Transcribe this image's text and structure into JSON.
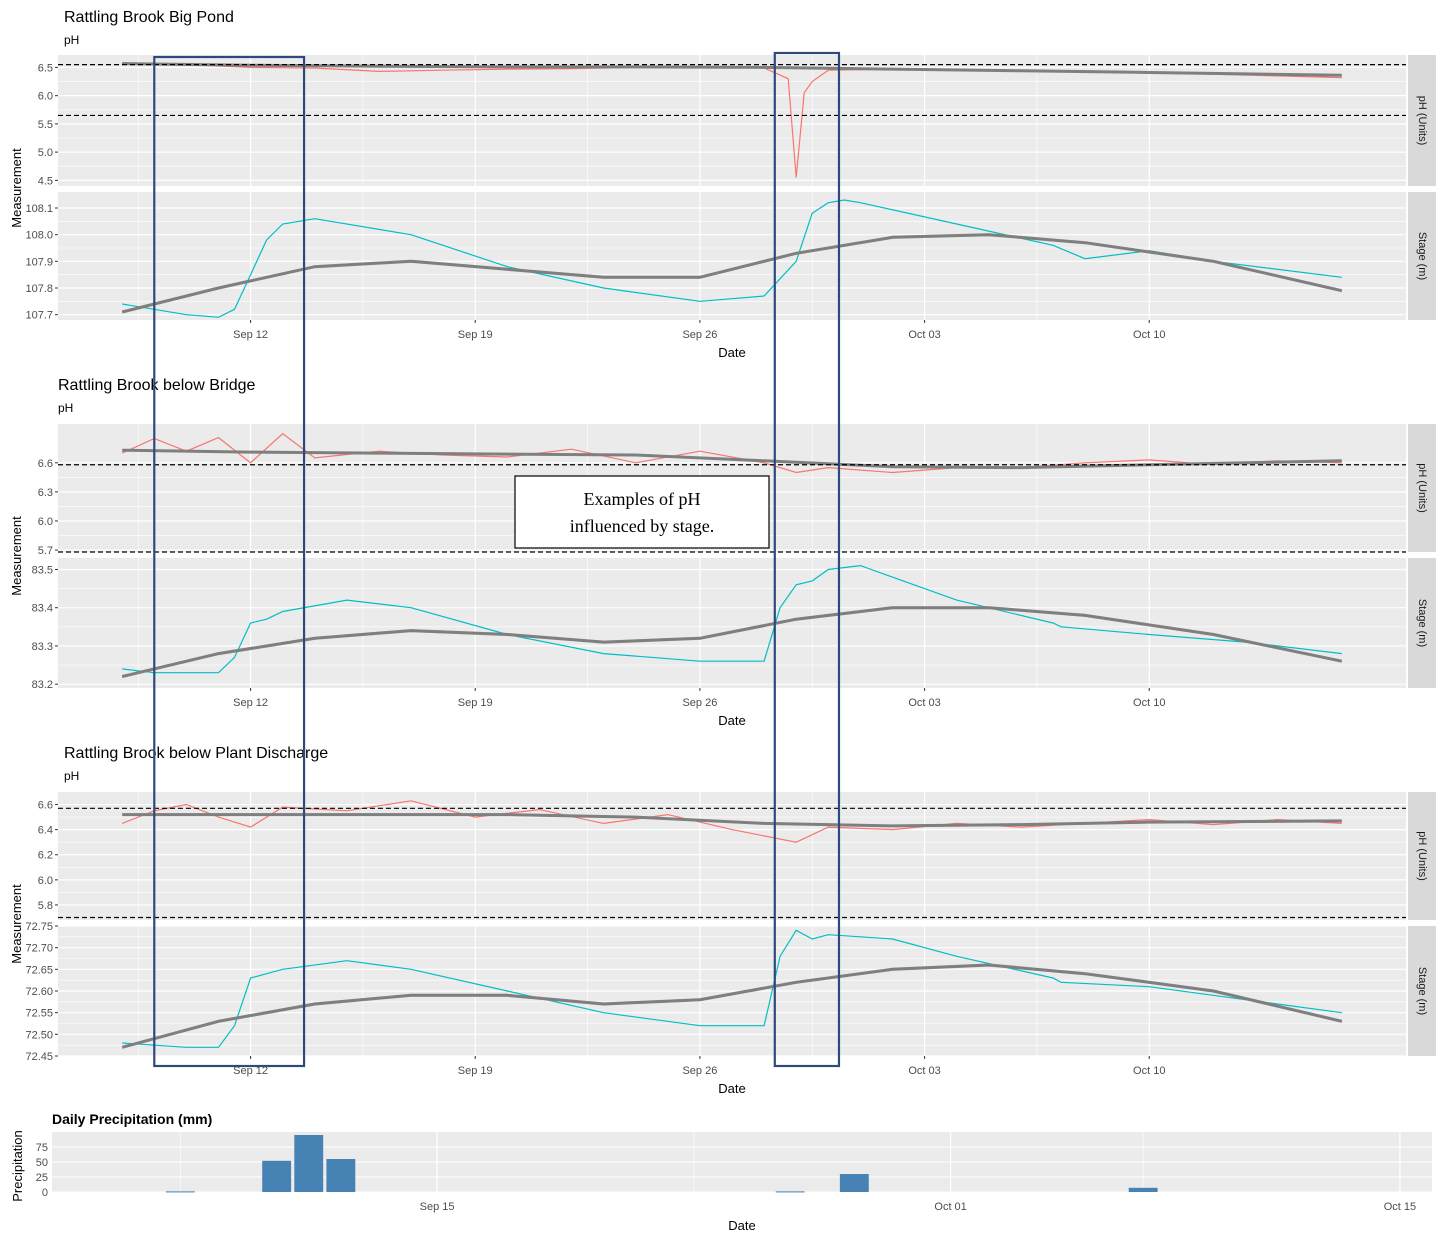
{
  "colors": {
    "panel_bg": "#ebebeb",
    "grid": "#ffffff",
    "strip_bg": "#d9d9d9",
    "ph_line": "#f8766d",
    "stage_line": "#00bfc4",
    "smooth": "#7f7f7f",
    "smooth_band": "#bdbdbd",
    "bar": "#4682b4",
    "highlight_box": "#2e4a7d"
  },
  "annotation": {
    "text_line1": "Examples of pH",
    "text_line2": "influenced by stage.",
    "highlight_ranges": [
      [
        "2023-09-09 00:00",
        "2023-09-13 16:00"
      ],
      [
        "2023-09-28 08:00",
        "2023-09-30 08:00"
      ]
    ]
  },
  "chart_data": [
    {
      "type": "line",
      "title": "Rattling Brook Big Pond",
      "subtitle": "pH",
      "xlabel": "Date",
      "ylabel": "Measurement",
      "x_range": [
        "2023-09-06 00:00",
        "2023-10-18 00:00"
      ],
      "x_ticks": [
        "Sep 12",
        "Sep 19",
        "Sep 26",
        "Oct 03",
        "Oct 10"
      ],
      "x_tick_dates": [
        "2023-09-12",
        "2023-09-19",
        "2023-09-26",
        "2023-10-03",
        "2023-10-10"
      ],
      "grid": true,
      "facets": [
        {
          "strip": "pH (Units)",
          "ylim": [
            4.4,
            6.72
          ],
          "y_ticks": [
            "4.5",
            "5.0",
            "5.5",
            "6.0",
            "6.5"
          ],
          "thresholds": [
            6.55,
            5.65
          ],
          "series": {
            "x": [
              "2023-09-08",
              "2023-09-10",
              "2023-09-12",
              "2023-09-14",
              "2023-09-16",
              "2023-09-18",
              "2023-09-20",
              "2023-09-22",
              "2023-09-24",
              "2023-09-26",
              "2023-09-28",
              "2023-09-28 18:00",
              "2023-09-29 00:00",
              "2023-09-29 06:00",
              "2023-09-29 12:00",
              "2023-09-30",
              "2023-10-02",
              "2023-10-04",
              "2023-10-06",
              "2023-10-08",
              "2023-10-10",
              "2023-10-12",
              "2023-10-14",
              "2023-10-16"
            ],
            "y": [
              6.57,
              6.55,
              6.5,
              6.49,
              6.43,
              6.45,
              6.47,
              6.48,
              6.5,
              6.52,
              6.49,
              6.3,
              4.55,
              6.05,
              6.25,
              6.45,
              6.47,
              6.46,
              6.44,
              6.42,
              6.4,
              6.38,
              6.35,
              6.32
            ]
          },
          "smooth": {
            "x": [
              "2023-09-08",
              "2023-09-12",
              "2023-09-16",
              "2023-09-20",
              "2023-09-24",
              "2023-09-28",
              "2023-10-02",
              "2023-10-06",
              "2023-10-10",
              "2023-10-16"
            ],
            "y": [
              6.57,
              6.54,
              6.52,
              6.51,
              6.51,
              6.5,
              6.47,
              6.44,
              6.41,
              6.36
            ]
          }
        },
        {
          "strip": "Stage (m)",
          "ylim": [
            107.68,
            108.16
          ],
          "y_ticks": [
            "107.7",
            "107.8",
            "107.9",
            "108.0",
            "108.1"
          ],
          "thresholds": [],
          "series": {
            "x": [
              "2023-09-08",
              "2023-09-10",
              "2023-09-11",
              "2023-09-11 12:00",
              "2023-09-12",
              "2023-09-12 12:00",
              "2023-09-13",
              "2023-09-14",
              "2023-09-17",
              "2023-09-20",
              "2023-09-23",
              "2023-09-26",
              "2023-09-27",
              "2023-09-28",
              "2023-09-29",
              "2023-09-29 12:00",
              "2023-09-30",
              "2023-09-30 12:00",
              "2023-10-01",
              "2023-10-04",
              "2023-10-07",
              "2023-10-08",
              "2023-10-10",
              "2023-10-12",
              "2023-10-16"
            ],
            "y": [
              107.74,
              107.7,
              107.69,
              107.72,
              107.85,
              107.98,
              108.04,
              108.06,
              108.0,
              107.88,
              107.8,
              107.75,
              107.76,
              107.77,
              107.9,
              108.08,
              108.12,
              108.13,
              108.12,
              108.04,
              107.96,
              107.91,
              107.94,
              107.9,
              107.84
            ]
          },
          "smooth": {
            "x": [
              "2023-09-08",
              "2023-09-11",
              "2023-09-14",
              "2023-09-17",
              "2023-09-20",
              "2023-09-23",
              "2023-09-26",
              "2023-09-29",
              "2023-10-02",
              "2023-10-05",
              "2023-10-08",
              "2023-10-12",
              "2023-10-16"
            ],
            "y": [
              107.71,
              107.8,
              107.88,
              107.9,
              107.87,
              107.84,
              107.84,
              107.93,
              107.99,
              108.0,
              107.97,
              107.9,
              107.79
            ]
          }
        }
      ]
    },
    {
      "type": "line",
      "title": "Rattling Brook below Bridge",
      "subtitle": "pH",
      "xlabel": "Date",
      "ylabel": "Measurement",
      "x_range": [
        "2023-09-06 00:00",
        "2023-10-18 00:00"
      ],
      "x_ticks": [
        "Sep 12",
        "Sep 19",
        "Sep 26",
        "Oct 03",
        "Oct 10"
      ],
      "x_tick_dates": [
        "2023-09-12",
        "2023-09-19",
        "2023-09-26",
        "2023-10-03",
        "2023-10-10"
      ],
      "grid": true,
      "facets": [
        {
          "strip": "pH (Units)",
          "ylim": [
            5.68,
            7.0
          ],
          "y_ticks": [
            "5.7",
            "6.0",
            "6.3",
            "6.6"
          ],
          "thresholds": [
            6.58,
            5.68
          ],
          "series": {
            "x": [
              "2023-09-08",
              "2023-09-09",
              "2023-09-10",
              "2023-09-11",
              "2023-09-12",
              "2023-09-13",
              "2023-09-14",
              "2023-09-16",
              "2023-09-18",
              "2023-09-20",
              "2023-09-22",
              "2023-09-24",
              "2023-09-26",
              "2023-09-28",
              "2023-09-29",
              "2023-09-30",
              "2023-10-02",
              "2023-10-04",
              "2023-10-06",
              "2023-10-08",
              "2023-10-10",
              "2023-10-12",
              "2023-10-14",
              "2023-10-16"
            ],
            "y": [
              6.7,
              6.85,
              6.72,
              6.86,
              6.6,
              6.9,
              6.65,
              6.72,
              6.68,
              6.66,
              6.74,
              6.6,
              6.72,
              6.6,
              6.5,
              6.55,
              6.5,
              6.55,
              6.55,
              6.6,
              6.63,
              6.58,
              6.62,
              6.6
            ]
          },
          "smooth": {
            "x": [
              "2023-09-08",
              "2023-09-12",
              "2023-09-16",
              "2023-09-20",
              "2023-09-24",
              "2023-09-28",
              "2023-10-02",
              "2023-10-06",
              "2023-10-10",
              "2023-10-16"
            ],
            "y": [
              6.73,
              6.71,
              6.7,
              6.69,
              6.68,
              6.62,
              6.56,
              6.55,
              6.58,
              6.62
            ]
          }
        },
        {
          "strip": "Stage (m)",
          "ylim": [
            83.19,
            83.53
          ],
          "y_ticks": [
            "83.2",
            "83.3",
            "83.4",
            "83.5"
          ],
          "thresholds": [],
          "series": {
            "x": [
              "2023-09-08",
              "2023-09-09",
              "2023-09-11",
              "2023-09-11 12:00",
              "2023-09-12",
              "2023-09-12 12:00",
              "2023-09-13",
              "2023-09-15",
              "2023-09-17",
              "2023-09-20",
              "2023-09-23",
              "2023-09-26",
              "2023-09-28",
              "2023-09-28 12:00",
              "2023-09-29",
              "2023-09-29 12:00",
              "2023-09-30",
              "2023-10-01",
              "2023-10-04",
              "2023-10-07",
              "2023-10-07 06:00",
              "2023-10-10",
              "2023-10-13",
              "2023-10-16"
            ],
            "y": [
              83.24,
              83.23,
              83.23,
              83.27,
              83.36,
              83.37,
              83.39,
              83.42,
              83.4,
              83.33,
              83.28,
              83.26,
              83.26,
              83.4,
              83.46,
              83.47,
              83.5,
              83.51,
              83.42,
              83.36,
              83.35,
              83.33,
              83.31,
              83.28
            ]
          },
          "smooth": {
            "x": [
              "2023-09-08",
              "2023-09-11",
              "2023-09-14",
              "2023-09-17",
              "2023-09-20",
              "2023-09-23",
              "2023-09-26",
              "2023-09-29",
              "2023-10-02",
              "2023-10-05",
              "2023-10-08",
              "2023-10-12",
              "2023-10-16"
            ],
            "y": [
              83.22,
              83.28,
              83.32,
              83.34,
              83.33,
              83.31,
              83.32,
              83.37,
              83.4,
              83.4,
              83.38,
              83.33,
              83.26
            ]
          }
        }
      ]
    },
    {
      "type": "line",
      "title": "Rattling Brook below Plant Discharge",
      "subtitle": "pH",
      "xlabel": "Date",
      "ylabel": "Measurement",
      "x_range": [
        "2023-09-06 00:00",
        "2023-10-18 00:00"
      ],
      "x_ticks": [
        "Sep 12",
        "Sep 19",
        "Sep 26",
        "Oct 03",
        "Oct 10"
      ],
      "x_tick_dates": [
        "2023-09-12",
        "2023-09-19",
        "2023-09-26",
        "2023-10-03",
        "2023-10-10"
      ],
      "grid": true,
      "facets": [
        {
          "strip": "pH (Units)",
          "ylim": [
            5.68,
            6.7
          ],
          "y_ticks": [
            "5.8",
            "6.0",
            "6.2",
            "6.4",
            "6.6"
          ],
          "thresholds": [
            6.57,
            5.7
          ],
          "series": {
            "x": [
              "2023-09-08",
              "2023-09-09",
              "2023-09-10",
              "2023-09-11",
              "2023-09-12",
              "2023-09-13",
              "2023-09-15",
              "2023-09-17",
              "2023-09-19",
              "2023-09-21",
              "2023-09-23",
              "2023-09-25",
              "2023-09-27",
              "2023-09-29",
              "2023-09-30",
              "2023-10-02",
              "2023-10-04",
              "2023-10-06",
              "2023-10-08",
              "2023-10-10",
              "2023-10-12",
              "2023-10-14",
              "2023-10-16"
            ],
            "y": [
              6.45,
              6.55,
              6.6,
              6.5,
              6.42,
              6.58,
              6.55,
              6.63,
              6.5,
              6.56,
              6.45,
              6.52,
              6.4,
              6.3,
              6.42,
              6.4,
              6.45,
              6.42,
              6.45,
              6.48,
              6.44,
              6.48,
              6.45
            ]
          },
          "smooth": {
            "x": [
              "2023-09-08",
              "2023-09-12",
              "2023-09-16",
              "2023-09-20",
              "2023-09-24",
              "2023-09-28",
              "2023-10-02",
              "2023-10-06",
              "2023-10-10",
              "2023-10-16"
            ],
            "y": [
              6.52,
              6.52,
              6.52,
              6.52,
              6.5,
              6.45,
              6.43,
              6.44,
              6.46,
              6.47
            ]
          }
        },
        {
          "strip": "Stage (m)",
          "ylim": [
            72.45,
            72.75
          ],
          "y_ticks": [
            "72.45",
            "72.50",
            "72.55",
            "72.60",
            "72.65",
            "72.70",
            "72.75"
          ],
          "thresholds": [],
          "series": {
            "x": [
              "2023-09-08",
              "2023-09-10",
              "2023-09-11",
              "2023-09-11 12:00",
              "2023-09-12",
              "2023-09-12 12:00",
              "2023-09-13",
              "2023-09-15",
              "2023-09-17",
              "2023-09-20",
              "2023-09-23",
              "2023-09-26",
              "2023-09-28",
              "2023-09-28 12:00",
              "2023-09-29",
              "2023-09-29 12:00",
              "2023-09-30",
              "2023-10-02",
              "2023-10-04",
              "2023-10-07",
              "2023-10-07 06:00",
              "2023-10-10",
              "2023-10-13",
              "2023-10-16"
            ],
            "y": [
              72.48,
              72.47,
              72.47,
              72.52,
              72.63,
              72.64,
              72.65,
              72.67,
              72.65,
              72.6,
              72.55,
              72.52,
              72.52,
              72.68,
              72.74,
              72.72,
              72.73,
              72.72,
              72.68,
              72.63,
              72.62,
              72.61,
              72.58,
              72.55
            ]
          },
          "smooth": {
            "x": [
              "2023-09-08",
              "2023-09-11",
              "2023-09-14",
              "2023-09-17",
              "2023-09-20",
              "2023-09-23",
              "2023-09-26",
              "2023-09-29",
              "2023-10-02",
              "2023-10-05",
              "2023-10-08",
              "2023-10-12",
              "2023-10-16"
            ],
            "y": [
              72.47,
              72.53,
              72.57,
              72.59,
              72.59,
              72.57,
              72.58,
              72.62,
              72.65,
              72.66,
              72.64,
              72.6,
              72.53
            ]
          }
        }
      ]
    },
    {
      "type": "bar",
      "title": "Daily Precipitation (mm)",
      "xlabel": "Date",
      "ylabel": "Precipitation",
      "x_range": [
        "2023-09-03",
        "2023-10-16"
      ],
      "x_ticks": [
        "Sep 15",
        "Oct 01",
        "Oct 15"
      ],
      "x_tick_dates": [
        "2023-09-15",
        "2023-10-01",
        "2023-10-15"
      ],
      "ylim": [
        0,
        100
      ],
      "y_ticks": [
        "0",
        "25",
        "50",
        "75"
      ],
      "grid": true,
      "categories": [
        "2023-09-07",
        "2023-09-10",
        "2023-09-11",
        "2023-09-12",
        "2023-09-26",
        "2023-09-28",
        "2023-10-07"
      ],
      "values": [
        1,
        52,
        95,
        55,
        1,
        30,
        7
      ]
    }
  ]
}
